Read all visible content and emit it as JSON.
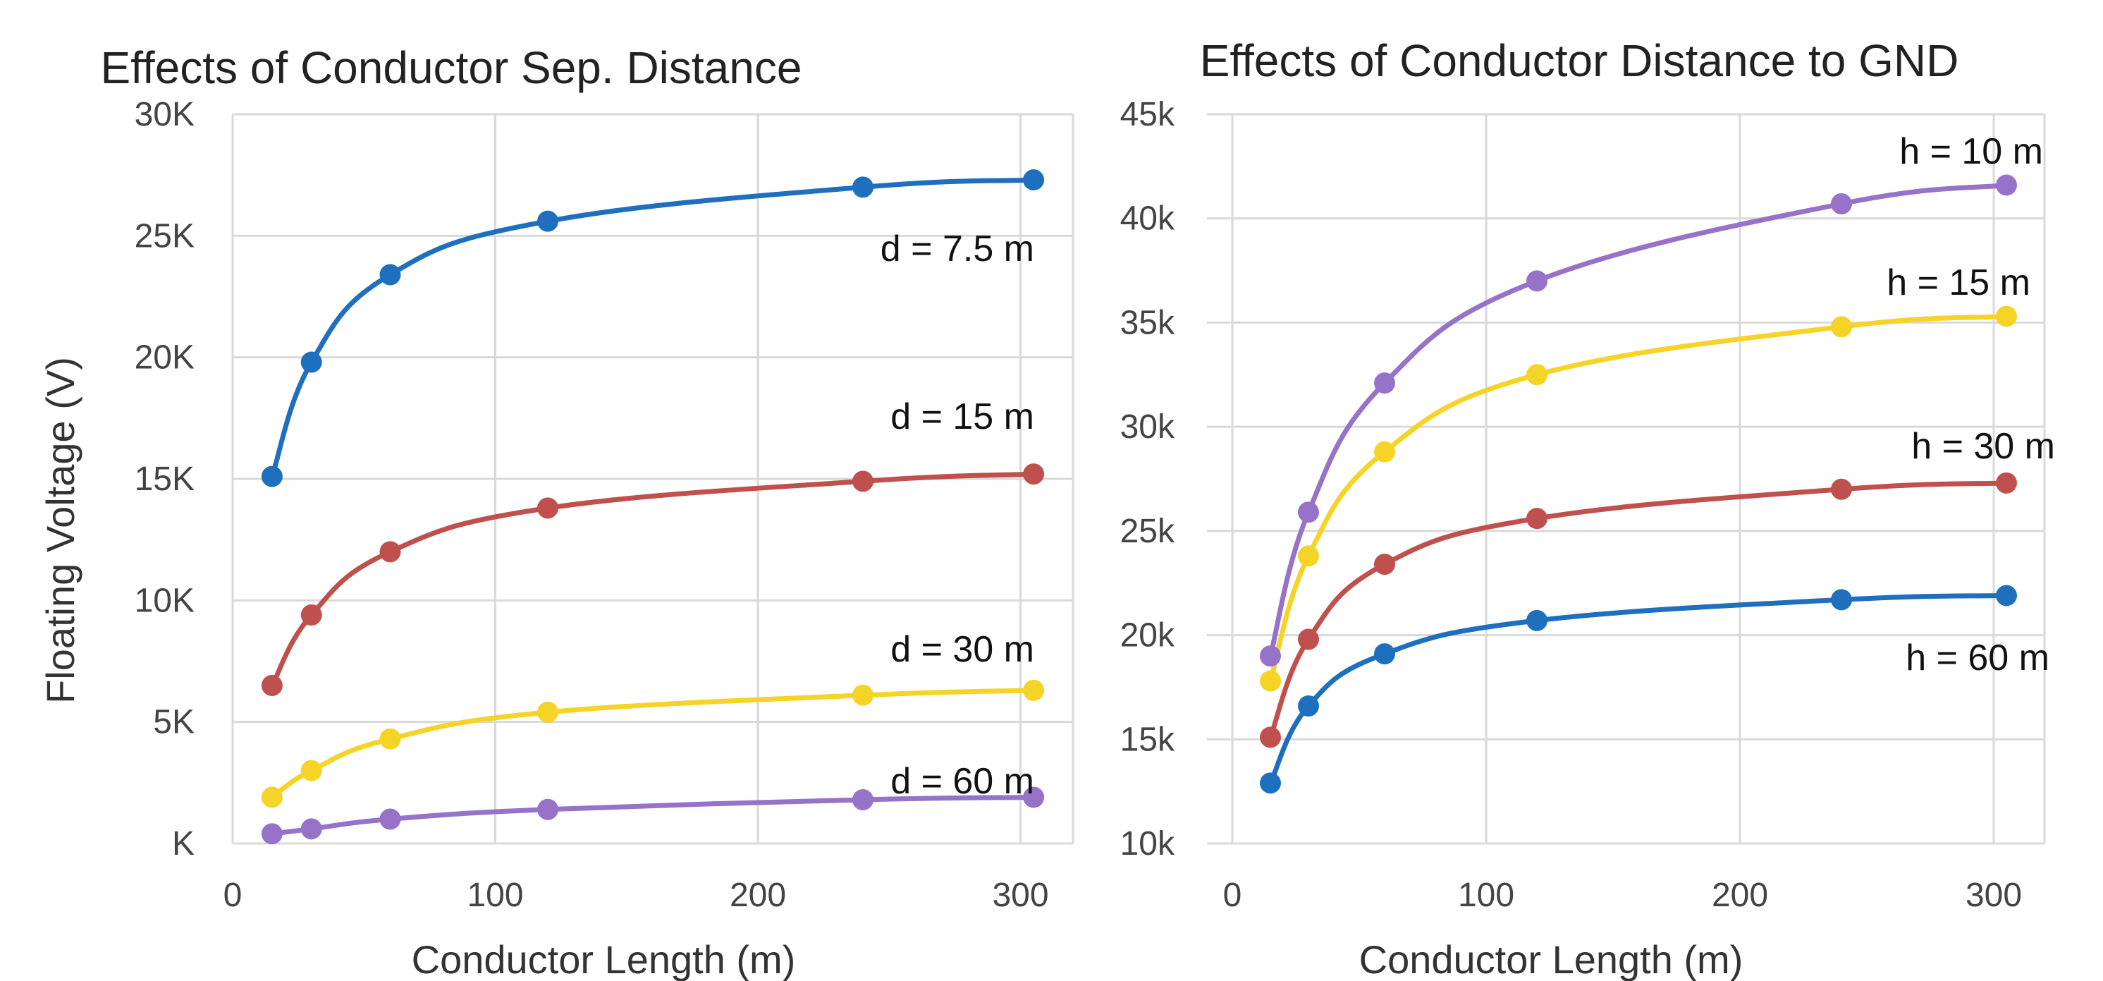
{
  "chart_data": [
    {
      "type": "line",
      "title": "Effects of Conductor Sep. Distance",
      "xlabel": "Conductor Length (m)",
      "ylabel": "Floating Voltage (V)",
      "xlim": [
        0,
        320
      ],
      "ylim": [
        0,
        30000
      ],
      "xticks": [
        0,
        100,
        200,
        300
      ],
      "xtick_labels": [
        "0",
        "100",
        "200",
        "300"
      ],
      "yticks": [
        0,
        5000,
        10000,
        15000,
        20000,
        25000,
        30000
      ],
      "ytick_labels": [
        "K",
        "5K",
        "10K",
        "15K",
        "20K",
        "25K",
        "30K"
      ],
      "grid": true,
      "x": [
        15,
        30,
        60,
        120,
        240,
        305
      ],
      "series": [
        {
          "name": "d = 7.5 m",
          "color": "#1f6fbf",
          "values": [
            15100,
            19800,
            23400,
            25600,
            27000,
            27300
          ]
        },
        {
          "name": "d = 15 m",
          "color": "#c0504d",
          "values": [
            6500,
            9400,
            12000,
            13800,
            14900,
            15200
          ]
        },
        {
          "name": "d = 30 m",
          "color": "#f5d327",
          "values": [
            1900,
            3000,
            4300,
            5400,
            6100,
            6300
          ]
        },
        {
          "name": "d = 60 m",
          "color": "#9673c8",
          "values": [
            400,
            600,
            1000,
            1400,
            1800,
            1900
          ]
        }
      ]
    },
    {
      "type": "line",
      "title": "Effects of Conductor Distance to GND",
      "xlabel": "Conductor Length (m)",
      "ylabel": "",
      "xlim": [
        -10,
        320
      ],
      "ylim": [
        10000,
        45000
      ],
      "xticks": [
        0,
        100,
        200,
        300
      ],
      "xtick_labels": [
        "0",
        "100",
        "200",
        "300"
      ],
      "yticks": [
        10000,
        15000,
        20000,
        25000,
        30000,
        35000,
        40000,
        45000
      ],
      "ytick_labels": [
        "10k",
        "15k",
        "20k",
        "25k",
        "30k",
        "35k",
        "40k",
        "45k"
      ],
      "grid": true,
      "x": [
        15,
        30,
        60,
        120,
        240,
        305
      ],
      "series": [
        {
          "name": "h = 10 m",
          "color": "#9673c8",
          "values": [
            19000,
            25900,
            32100,
            37000,
            40700,
            41600
          ]
        },
        {
          "name": "h = 15 m",
          "color": "#f5d327",
          "values": [
            17800,
            23800,
            28800,
            32500,
            34800,
            35300
          ]
        },
        {
          "name": "h = 30 m",
          "color": "#c0504d",
          "values": [
            15100,
            19800,
            23400,
            25600,
            27000,
            27300
          ]
        },
        {
          "name": "h = 60 m",
          "color": "#1f6fbf",
          "values": [
            12900,
            16600,
            19100,
            20700,
            21700,
            21900
          ]
        }
      ]
    }
  ]
}
